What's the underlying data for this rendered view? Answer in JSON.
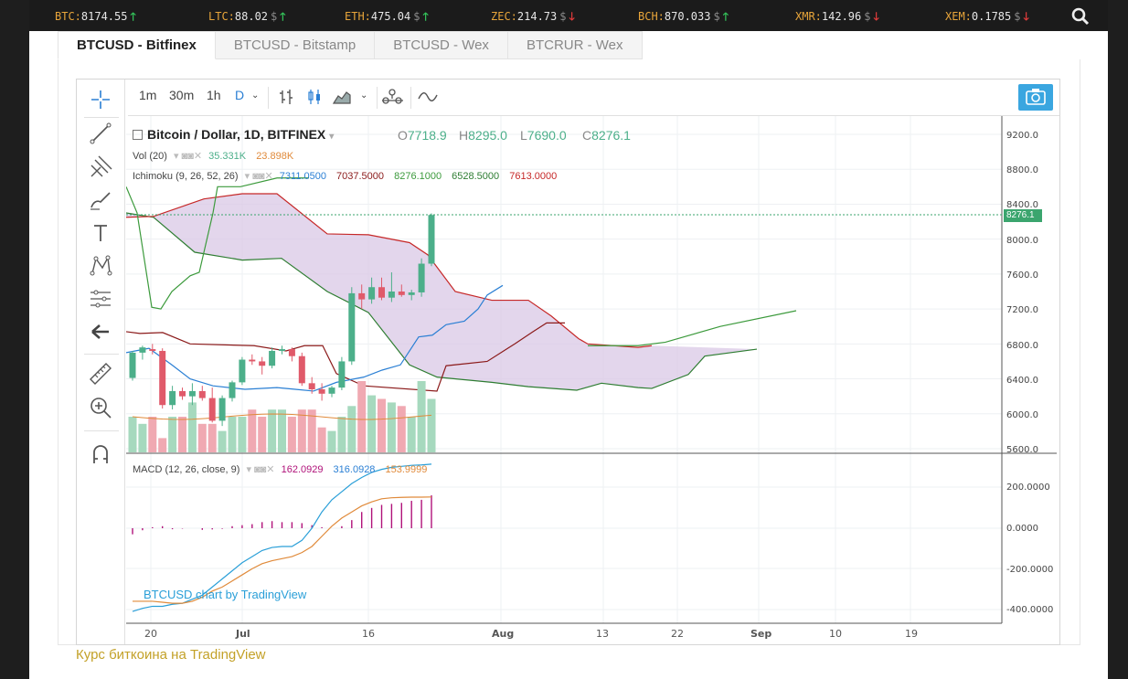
{
  "ticker": [
    {
      "symbol": "BTC:",
      "price": "8174.55",
      "currency": "",
      "dir": "up"
    },
    {
      "symbol": "LTC:",
      "price": "88.02",
      "currency": "$",
      "dir": "up"
    },
    {
      "symbol": "ETH:",
      "price": "475.04",
      "currency": "$",
      "dir": "up"
    },
    {
      "symbol": "ZEC:",
      "price": "214.73",
      "currency": "$",
      "dir": "down"
    },
    {
      "symbol": "BCH:",
      "price": "870.033",
      "currency": "$",
      "dir": "up"
    },
    {
      "symbol": "XMR:",
      "price": "142.96",
      "currency": "$",
      "dir": "down"
    },
    {
      "symbol": "XEM:",
      "price": "0.1785",
      "currency": "$",
      "dir": "down"
    }
  ],
  "tabs": [
    "BTCUSD - Bitfinex",
    "BTCUSD - Bitstamp",
    "BTCUSD - Wex",
    "BTCRUR - Wex"
  ],
  "toolbar": {
    "intervals": [
      "1m",
      "30m",
      "1h",
      "D"
    ],
    "active_interval": "D"
  },
  "legend": {
    "title": "Bitcoin / Dollar, 1D, BITFINEX",
    "ohlc": [
      {
        "k": "O",
        "v": "7718.9"
      },
      {
        "k": "H",
        "v": "8295.0"
      },
      {
        "k": "L",
        "v": "7690.0"
      },
      {
        "k": "C",
        "v": "8276.1"
      }
    ],
    "vol_label": "Vol (20)",
    "vol_values": [
      "35.331K",
      "23.898K"
    ],
    "ichimoku_label": "Ichimoku (9, 26, 52, 26)",
    "ichimoku_values": [
      "7311.0500",
      "7037.5000",
      "8276.1000",
      "6528.5000",
      "7613.0000"
    ],
    "macd_label": "MACD (12, 26, close, 9)",
    "macd_values": [
      "162.0929",
      "316.0928",
      "153.9999"
    ]
  },
  "price_tag": "8276.1",
  "watermark": "BTCUSD chart by TradingView",
  "footer_link": "Курс биткоина на TradingView",
  "colors": {
    "accent": "#2a7fd4",
    "up": "#4caf8a",
    "down": "#e05a6a",
    "cloud": "#d9c8e6",
    "ticker_symbol": "#e8a53a",
    "footer_link": "#c3a128"
  },
  "chart_data": {
    "type": "candlestick",
    "title": "Bitcoin / Dollar, 1D, BITFINEX",
    "y_price_ticks": [
      "9200.0",
      "8800.0",
      "8400.0",
      "8000.0",
      "7600.0",
      "7200.0",
      "6800.0",
      "6400.0",
      "6000.0",
      "5600.0"
    ],
    "y_price_range": [
      5600,
      9200
    ],
    "y_macd_ticks": [
      "200.0000",
      "0.0000",
      "-200.0000",
      "-400.0000"
    ],
    "x_ticks": [
      "20",
      "Jul",
      "16",
      "Aug",
      "13",
      "22",
      "Sep",
      "10",
      "19"
    ],
    "candles": [
      {
        "o": 6410,
        "h": 6720,
        "l": 6380,
        "c": 6700
      },
      {
        "o": 6700,
        "h": 6780,
        "l": 6620,
        "c": 6760
      },
      {
        "o": 6740,
        "h": 6800,
        "l": 6680,
        "c": 6720
      },
      {
        "o": 6720,
        "h": 6750,
        "l": 6060,
        "c": 6100
      },
      {
        "o": 6100,
        "h": 6320,
        "l": 6050,
        "c": 6260
      },
      {
        "o": 6260,
        "h": 6300,
        "l": 6160,
        "c": 6200
      },
      {
        "o": 6200,
        "h": 6350,
        "l": 6100,
        "c": 6260
      },
      {
        "o": 6260,
        "h": 6320,
        "l": 6150,
        "c": 6180
      },
      {
        "o": 6180,
        "h": 6300,
        "l": 5900,
        "c": 5920
      },
      {
        "o": 5920,
        "h": 6210,
        "l": 5860,
        "c": 6180
      },
      {
        "o": 6180,
        "h": 6380,
        "l": 6140,
        "c": 6360
      },
      {
        "o": 6360,
        "h": 6650,
        "l": 6330,
        "c": 6620
      },
      {
        "o": 6620,
        "h": 6680,
        "l": 6560,
        "c": 6600
      },
      {
        "o": 6600,
        "h": 6650,
        "l": 6450,
        "c": 6550
      },
      {
        "o": 6550,
        "h": 6760,
        "l": 6520,
        "c": 6720
      },
      {
        "o": 6720,
        "h": 6780,
        "l": 6680,
        "c": 6740
      },
      {
        "o": 6740,
        "h": 6760,
        "l": 6600,
        "c": 6660
      },
      {
        "o": 6660,
        "h": 6700,
        "l": 6320,
        "c": 6350
      },
      {
        "o": 6350,
        "h": 6420,
        "l": 6230,
        "c": 6280
      },
      {
        "o": 6280,
        "h": 6350,
        "l": 6150,
        "c": 6230
      },
      {
        "o": 6230,
        "h": 6320,
        "l": 6190,
        "c": 6300
      },
      {
        "o": 6300,
        "h": 6650,
        "l": 6270,
        "c": 6600
      },
      {
        "o": 6600,
        "h": 7450,
        "l": 6560,
        "c": 7380
      },
      {
        "o": 7380,
        "h": 7480,
        "l": 7200,
        "c": 7310
      },
      {
        "o": 7310,
        "h": 7560,
        "l": 7260,
        "c": 7450
      },
      {
        "o": 7450,
        "h": 7560,
        "l": 7300,
        "c": 7330
      },
      {
        "o": 7330,
        "h": 7620,
        "l": 7280,
        "c": 7400
      },
      {
        "o": 7400,
        "h": 7480,
        "l": 7340,
        "c": 7360
      },
      {
        "o": 7360,
        "h": 7420,
        "l": 7300,
        "c": 7390
      },
      {
        "o": 7390,
        "h": 7780,
        "l": 7340,
        "c": 7718.9
      },
      {
        "o": 7718.9,
        "h": 8295,
        "l": 7690,
        "c": 8276.1
      }
    ],
    "volume": [
      0.5,
      0.4,
      0.5,
      0.2,
      0.5,
      0.5,
      0.7,
      0.4,
      0.4,
      0.3,
      0.5,
      0.5,
      0.6,
      0.5,
      0.6,
      0.6,
      0.5,
      0.6,
      0.6,
      0.35,
      0.3,
      0.5,
      0.65,
      1.0,
      0.8,
      0.75,
      0.7,
      0.65,
      0.5,
      1.0,
      0.75
    ]
  }
}
